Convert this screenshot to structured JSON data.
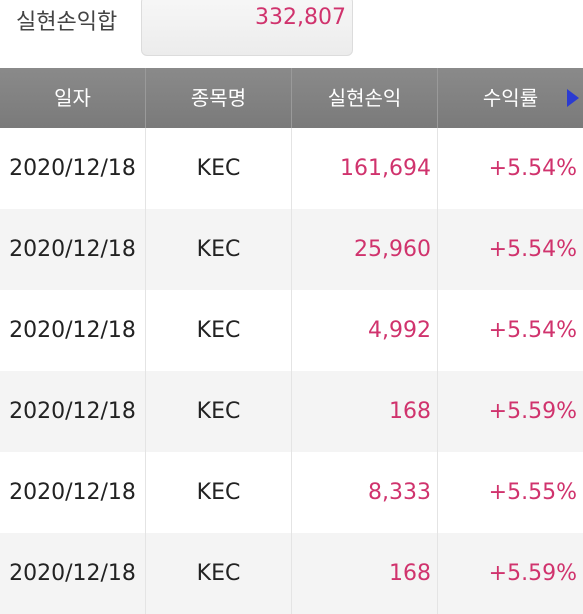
{
  "summary": {
    "label": "실현손익합",
    "value": "332,807"
  },
  "table": {
    "headers": [
      "일자",
      "종목명",
      "실현손익",
      "수익률"
    ],
    "rows": [
      {
        "date": "2020/12/18",
        "name": "KEC",
        "pnl": "161,694",
        "rate": "+5.54%"
      },
      {
        "date": "2020/12/18",
        "name": "KEC",
        "pnl": "25,960",
        "rate": "+5.54%"
      },
      {
        "date": "2020/12/18",
        "name": "KEC",
        "pnl": "4,992",
        "rate": "+5.54%"
      },
      {
        "date": "2020/12/18",
        "name": "KEC",
        "pnl": "168",
        "rate": "+5.59%"
      },
      {
        "date": "2020/12/18",
        "name": "KEC",
        "pnl": "8,333",
        "rate": "+5.55%"
      },
      {
        "date": "2020/12/18",
        "name": "KEC",
        "pnl": "168",
        "rate": "+5.59%"
      }
    ]
  },
  "colors": {
    "profit": "#d0336d",
    "header_bg": "#808080",
    "arrow": "#2b3bd1"
  },
  "icons": {
    "next_columns": "play-triangle-right-icon"
  }
}
